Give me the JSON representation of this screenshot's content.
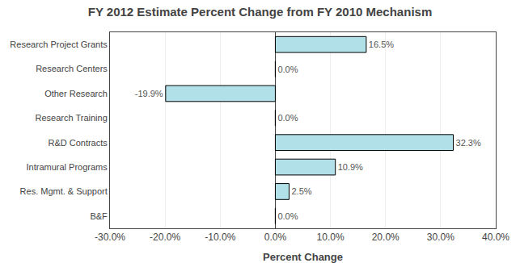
{
  "chart_data": {
    "type": "bar",
    "orientation": "horizontal",
    "title": "FY 2012 Estimate Percent Change from FY 2010 Mechanism",
    "x_label": "Percent Change",
    "categories": [
      "Research Project Grants",
      "Research Centers",
      "Other Research",
      "Research Training",
      "R&D Contracts",
      "Intramural Programs",
      "Res. Mgmt. & Support",
      "B&F"
    ],
    "values": [
      16.5,
      0.0,
      -19.9,
      0.0,
      32.3,
      10.9,
      2.5,
      0.0
    ],
    "value_labels": [
      "16.5%",
      "0.0%",
      "-19.9%",
      "0.0%",
      "32.3%",
      "10.9%",
      "2.5%",
      "0.0%"
    ],
    "data_labels": true,
    "color": "#b2e0e8",
    "xlim": [
      -30,
      40
    ],
    "xticks": [
      {
        "value": -30,
        "label": "-30.0%"
      },
      {
        "value": -20,
        "label": "-20.0%"
      },
      {
        "value": -10,
        "label": "-10.0%"
      },
      {
        "value": 0,
        "label": "0.0%"
      },
      {
        "value": 10,
        "label": "10.0%"
      },
      {
        "value": 20,
        "label": "20.0%"
      },
      {
        "value": 30,
        "label": "30.0%"
      },
      {
        "value": 40,
        "label": "40.0%"
      }
    ],
    "grid": true
  }
}
